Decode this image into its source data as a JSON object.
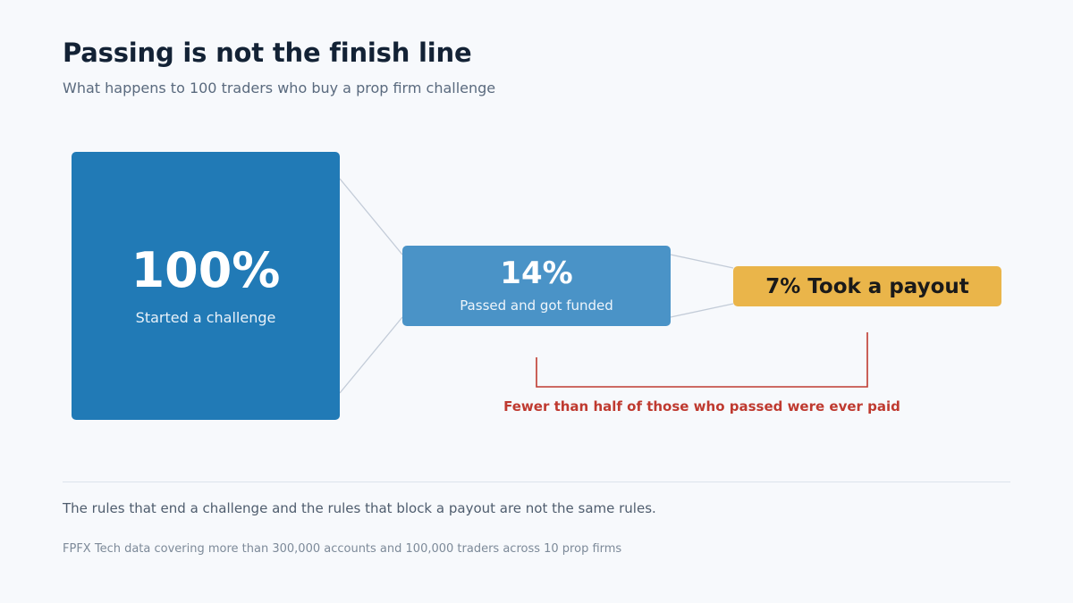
{
  "header": {
    "title": "Passing is not the finish line",
    "subtitle": "What happens to 100 traders who buy a prop firm challenge"
  },
  "funnel": {
    "stages": [
      {
        "value": "100%",
        "label": "Started a challenge",
        "color": "#217ab6"
      },
      {
        "value": "14%",
        "label": "Passed and got funded",
        "color": "#4a93c7"
      },
      {
        "value": "7% Took a payout",
        "color": "#eab54a"
      }
    ],
    "connector_color": "#c3ccd8",
    "annotation": {
      "text": "Fewer than half of those who passed were ever paid",
      "color": "#bf3a30"
    }
  },
  "footer": {
    "takeaway": "The rules that end a challenge and the rules that block a payout are not the same rules.",
    "source": "FPFX Tech data covering more than 300,000 accounts and 100,000 traders across 10 prop firms"
  }
}
